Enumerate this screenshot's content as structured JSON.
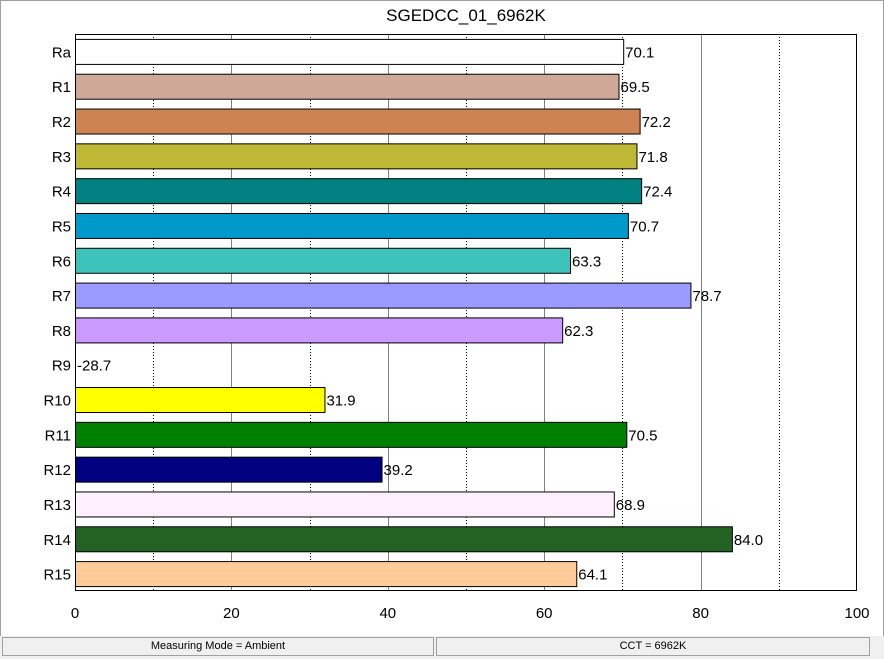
{
  "chart_data": {
    "type": "bar",
    "orientation": "horizontal",
    "title": "SGEDCC_01_6962K",
    "xlabel": "",
    "ylabel": "",
    "xlim": [
      0,
      100
    ],
    "x_ticks": [
      "0",
      "20",
      "40",
      "60",
      "80",
      "100"
    ],
    "grid": "vertical",
    "categories": [
      "Ra",
      "R1",
      "R2",
      "R3",
      "R4",
      "R5",
      "R6",
      "R7",
      "R8",
      "R9",
      "R10",
      "R11",
      "R12",
      "R13",
      "R14",
      "R15"
    ],
    "values": [
      70.1,
      69.5,
      72.2,
      71.8,
      72.4,
      70.7,
      63.3,
      78.7,
      62.3,
      -28.7,
      31.9,
      70.5,
      39.2,
      68.9,
      84.0,
      64.1
    ],
    "value_labels": [
      "70.1",
      "69.5",
      "72.2",
      "71.8",
      "72.4",
      "70.7",
      "63.3",
      "78.7",
      "62.3",
      "-28.7",
      "31.9",
      "70.5",
      "39.2",
      "68.9",
      "84.0",
      "64.1"
    ],
    "colors": [
      "#ffffff",
      "#cfa898",
      "#cd8352",
      "#bfb834",
      "#008080",
      "#0099cc",
      "#3cc4bc",
      "#9b9bff",
      "#cc99ff",
      "#ff0000",
      "#ffff00",
      "#008000",
      "#000080",
      "#fff0ff",
      "#246224",
      "#ffcc99"
    ]
  },
  "status": {
    "mode": "Measuring Mode = Ambient",
    "cct": "CCT = 6962K"
  }
}
